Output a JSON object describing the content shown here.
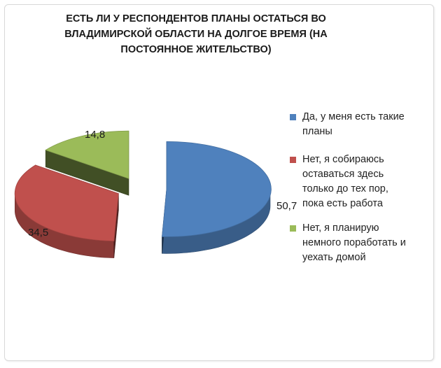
{
  "chart_data": {
    "type": "pie",
    "title_lines": [
      "ЕСТЬ ЛИ У РЕСПОНДЕНТОВ ПЛАНЫ ОСТАТЬСЯ ВО",
      "ВЛАДИМИРСКОЙ ОБЛАСТИ НА ДОЛГОЕ ВРЕМЯ (НА",
      "ПОСТОЯННОЕ ЖИТЕЛЬСТВО)"
    ],
    "style": "3d-exploded",
    "legend_position": "right",
    "slices": [
      {
        "label_lines": [
          "Да, у меня есть такие",
          "планы"
        ],
        "value": 50.7,
        "value_label": "50,7",
        "color": "#4F81BD"
      },
      {
        "label_lines": [
          "Нет, я собираюсь",
          "оставаться здесь",
          "только до тех пор,",
          "пока есть работа"
        ],
        "value": 34.5,
        "value_label": "34,5",
        "color": "#C0504D"
      },
      {
        "label_lines": [
          "Нет, я планирую",
          "немного поработать и",
          "уехать домой"
        ],
        "value": 14.8,
        "value_label": "14,8",
        "color": "#9BBB59"
      }
    ]
  }
}
